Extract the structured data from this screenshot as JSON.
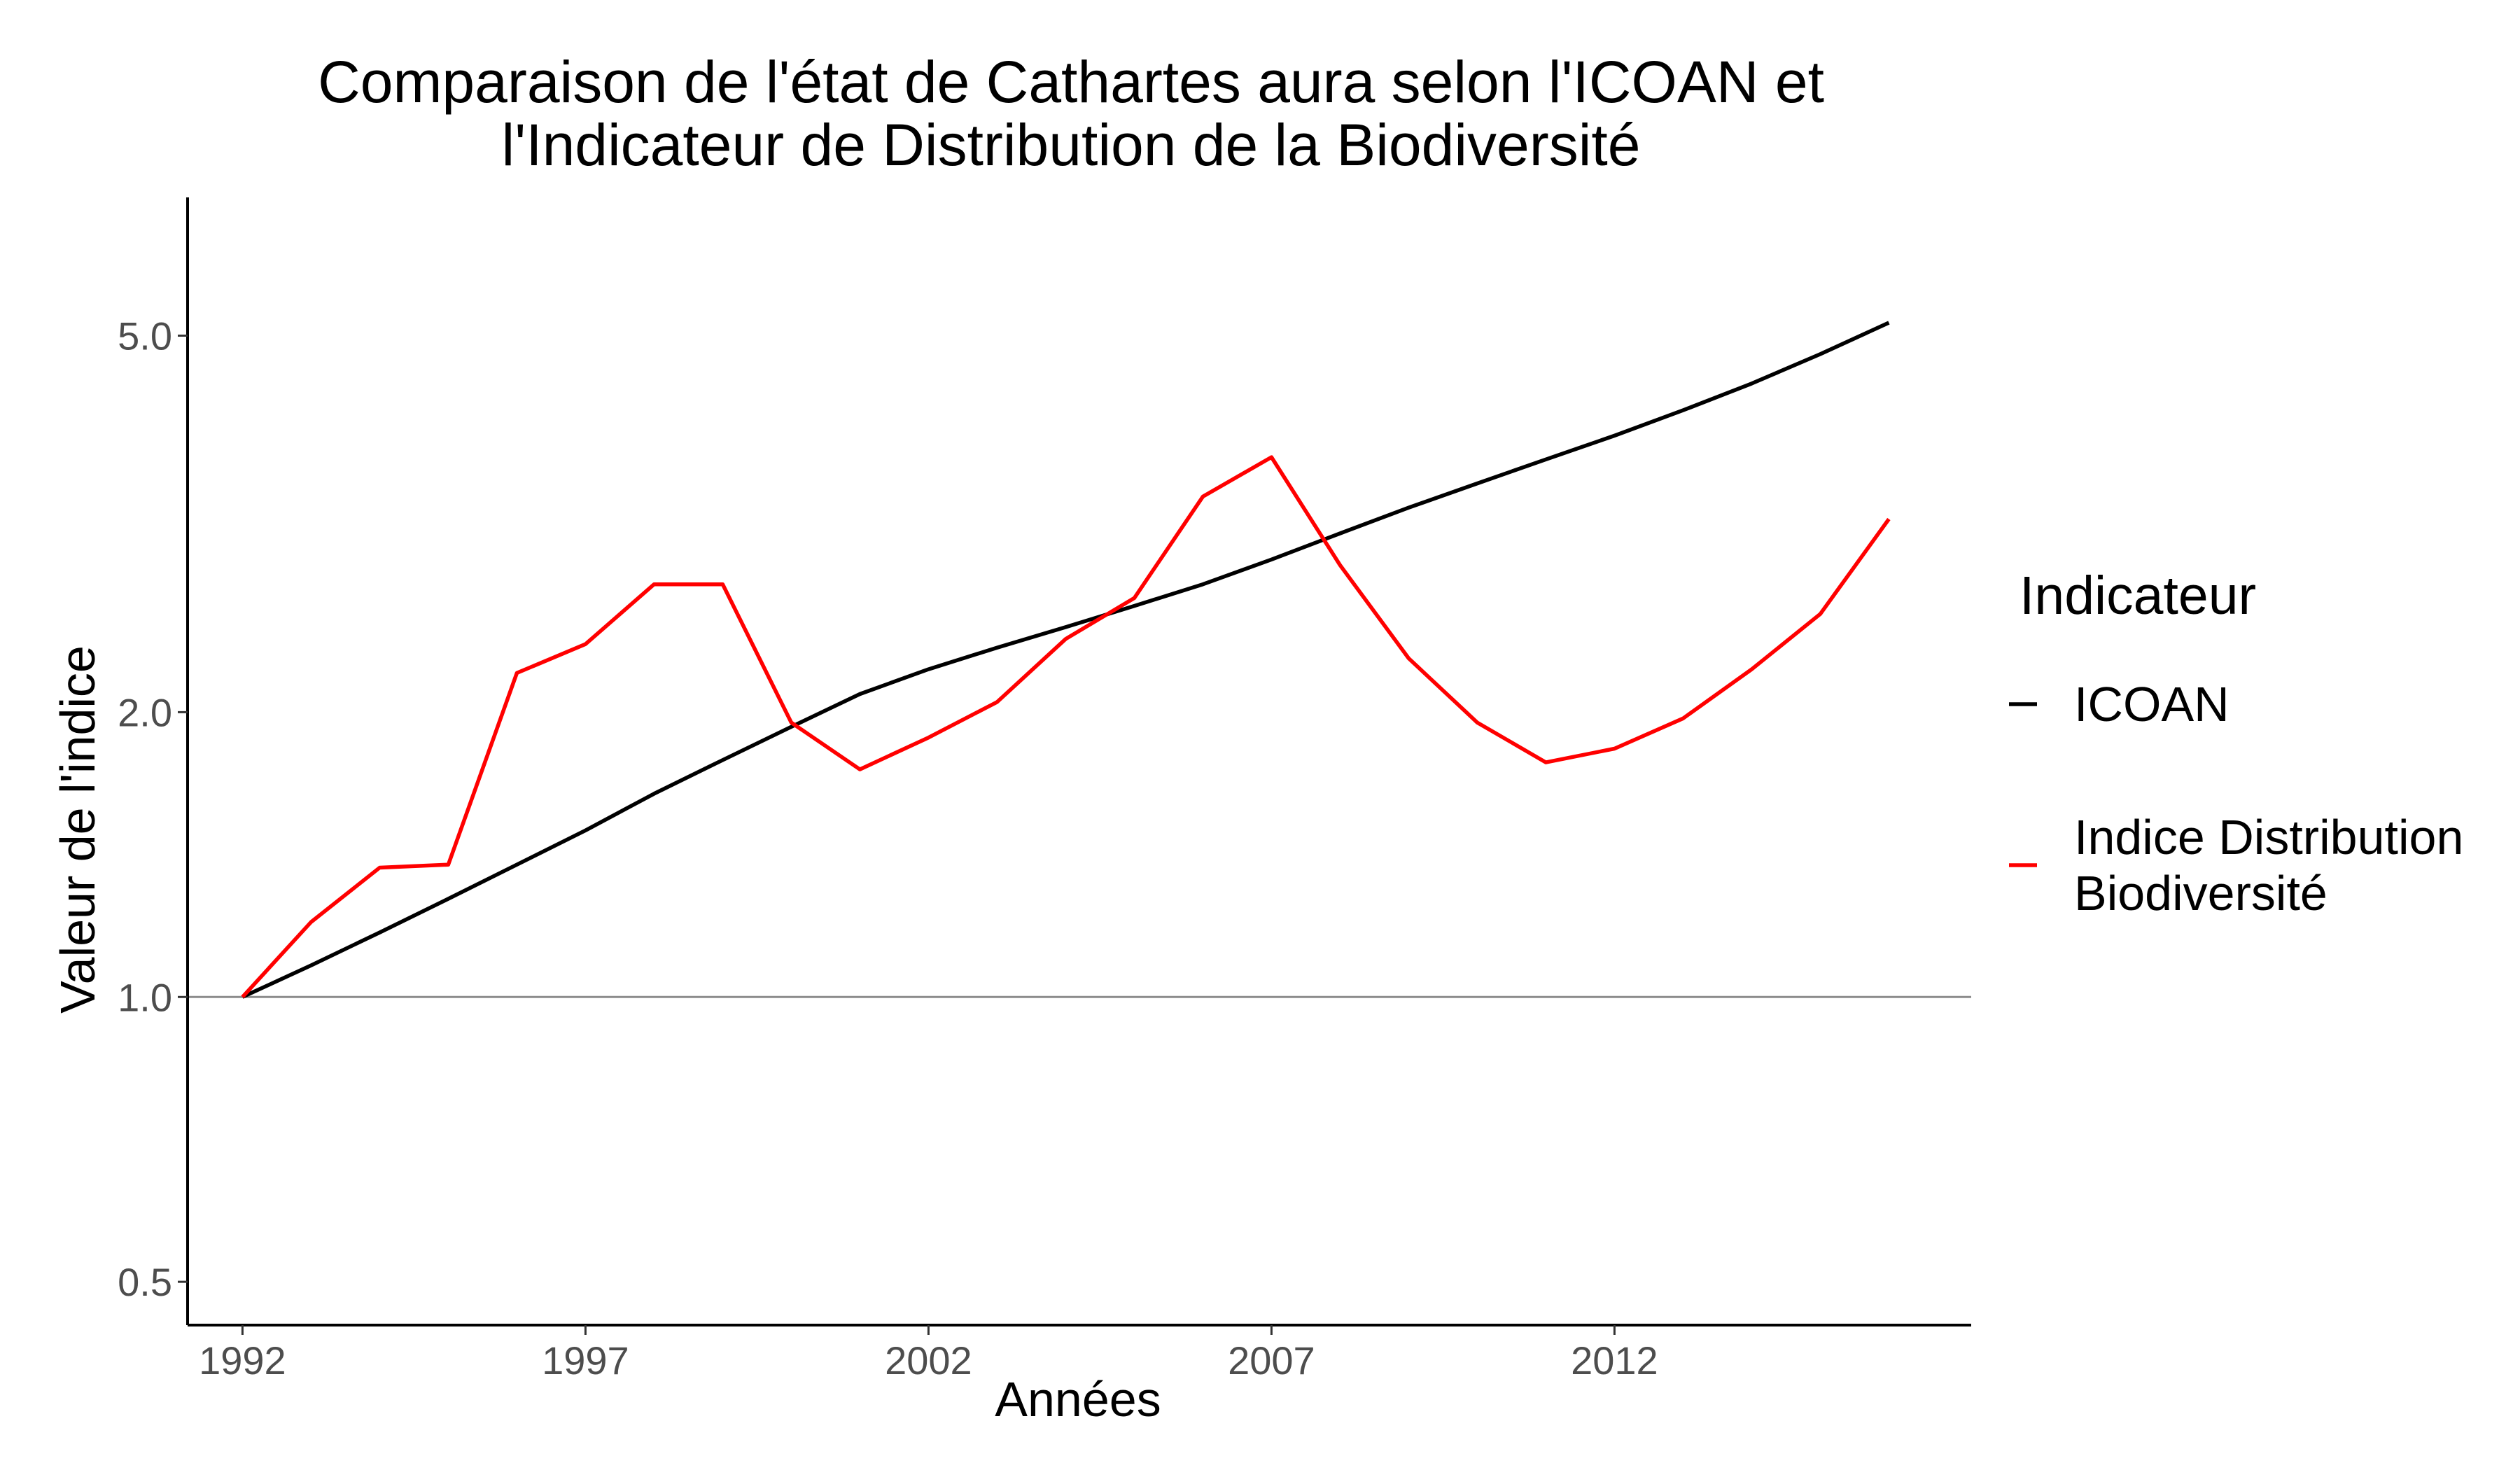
{
  "chart_data": {
    "type": "line",
    "title": [
      "Comparaison de l'état de Cathartes aura selon l'ICOAN et",
      "l'Indicateur de Distribution de la Biodiversité"
    ],
    "xlabel": "Années",
    "ylabel": "Valeur de l'indice",
    "x": [
      1992,
      1993,
      1994,
      1995,
      1996,
      1997,
      1998,
      1999,
      2000,
      2001,
      2002,
      2003,
      2004,
      2005,
      2006,
      2007,
      2008,
      2009,
      2010,
      2011,
      2012,
      2013,
      2014,
      2015,
      2016
    ],
    "xlim": [
      1991.2,
      2017.2
    ],
    "x_ticks": [
      1992,
      1997,
      2002,
      2007,
      2012
    ],
    "y_scale": "log",
    "ylim": [
      0.45,
      7.0
    ],
    "y_ticks": [
      0.5,
      1.0,
      2.0,
      5.0
    ],
    "y_tick_labels": [
      "0.5",
      "1.0",
      "2.0",
      "5.0"
    ],
    "reference_line": 1.0,
    "grid": false,
    "legend": {
      "title": "Indicateur",
      "position": "right"
    },
    "series": [
      {
        "name": "ICOAN",
        "color": "#000000",
        "values": [
          1.0,
          1.08,
          1.17,
          1.27,
          1.38,
          1.5,
          1.64,
          1.78,
          1.93,
          2.09,
          2.22,
          2.34,
          2.46,
          2.59,
          2.73,
          2.9,
          3.09,
          3.29,
          3.49,
          3.7,
          3.92,
          4.17,
          4.45,
          4.78,
          5.16
        ]
      },
      {
        "name": "Indice Distribution\nBiodiversité",
        "color": "#ff0000",
        "values": [
          1.0,
          1.2,
          1.37,
          1.38,
          2.2,
          2.36,
          2.73,
          2.73,
          1.95,
          1.74,
          1.88,
          2.05,
          2.39,
          2.64,
          3.38,
          3.72,
          2.86,
          2.28,
          1.95,
          1.77,
          1.83,
          1.97,
          2.22,
          2.54,
          3.2
        ]
      }
    ]
  }
}
